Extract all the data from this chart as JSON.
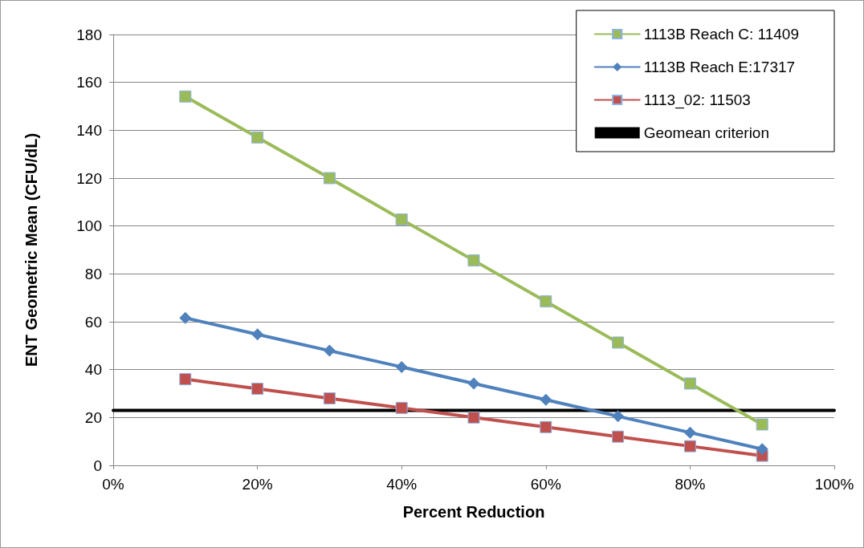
{
  "chart_data": {
    "type": "line",
    "xlabel": "Percent Reduction",
    "ylabel": "ENT Geometric Mean (CFU/dL)",
    "x": [
      10,
      20,
      30,
      40,
      50,
      60,
      70,
      80,
      90
    ],
    "series": [
      {
        "name": "1113B Reach C: 11409",
        "color": "#9bbb59",
        "marker": "square",
        "values": [
          154.1,
          137,
          120,
          102.7,
          85.6,
          68.5,
          51.3,
          34.2,
          17.1
        ]
      },
      {
        "name": "1113B Reach E:17317",
        "color": "#4f81bd",
        "marker": "diamond",
        "values": [
          61.6,
          54.7,
          47.9,
          41.1,
          34.2,
          27.4,
          20.5,
          13.7,
          6.8
        ]
      },
      {
        "name": "1113_02: 11503",
        "color": "#c0504d",
        "marker": "square",
        "values": [
          36,
          32,
          28,
          24,
          20,
          16,
          12,
          8,
          4
        ]
      },
      {
        "name": "Geomean criterion",
        "color": "#000000",
        "marker": "none",
        "x": [
          0,
          100
        ],
        "values": [
          23,
          23
        ]
      }
    ],
    "xlim": [
      0,
      100
    ],
    "xticks": [
      {
        "value": 0,
        "label": "0%"
      },
      {
        "value": 20,
        "label": "20%"
      },
      {
        "value": 40,
        "label": "40%"
      },
      {
        "value": 60,
        "label": "60%"
      },
      {
        "value": 80,
        "label": "80%"
      },
      {
        "value": 100,
        "label": "100%"
      }
    ],
    "ylim": [
      0,
      180
    ],
    "yticks": [
      0,
      20,
      40,
      60,
      80,
      100,
      120,
      140,
      160,
      180
    ],
    "grid": "y",
    "legend": "top right",
    "line_style": "solid"
  }
}
